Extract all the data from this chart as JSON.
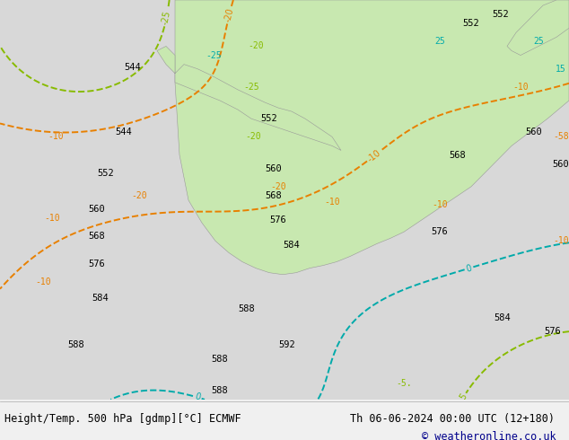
{
  "title_left": "Height/Temp. 500 hPa [gdmp][°C] ECMWF",
  "title_right": "Th 06-06-2024 00:00 UTC (12+180)",
  "copyright": "© weatheronline.co.uk",
  "bg_color": "#d8d8d8",
  "land_color": "#c8e8b0",
  "ocean_color": "#d8d8d8",
  "footer_bg": "#f0f0f0",
  "footer_text_color": "#000000",
  "copyright_color": "#00008b",
  "fig_width": 6.34,
  "fig_height": 4.9,
  "dpi": 100
}
